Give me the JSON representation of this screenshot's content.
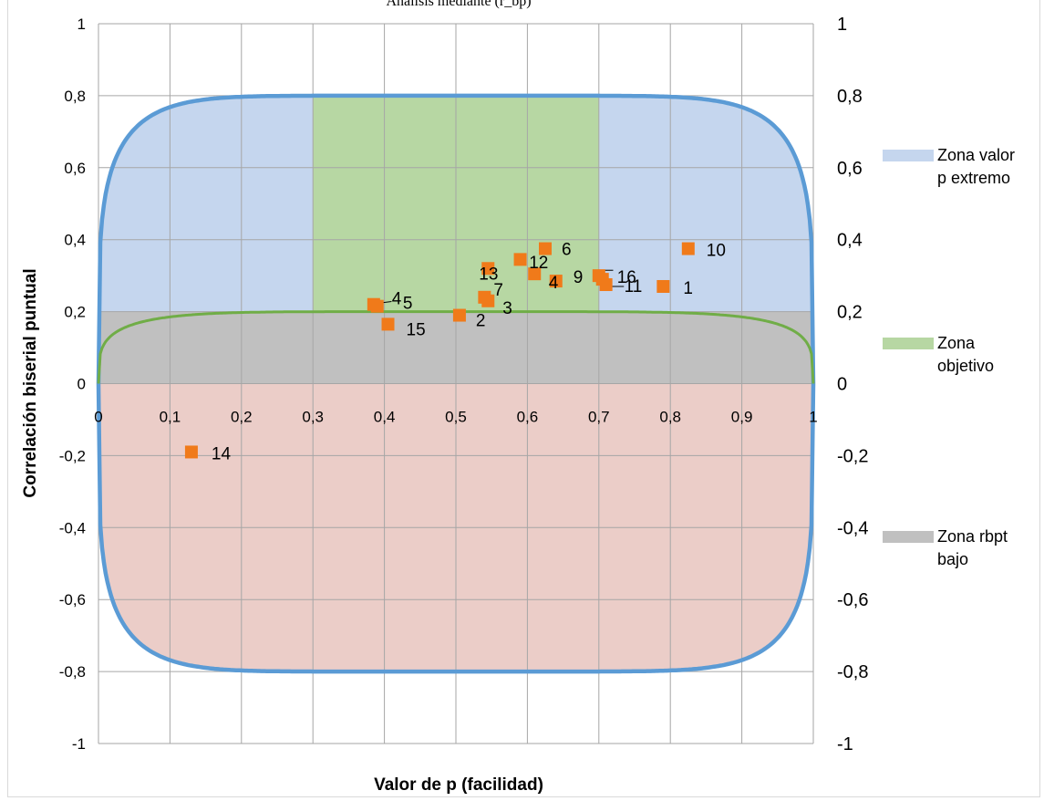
{
  "chart_data": {
    "type": "scatter",
    "title": "Análisis mediante (r_bp)",
    "xlabel": "Valor de p (facilidad)",
    "ylabel": "Correlación biserial puntual",
    "xlim": [
      0,
      1
    ],
    "ylim": [
      -1,
      1
    ],
    "x_ticks": [
      "0",
      "0,1",
      "0,2",
      "0,3",
      "0,4",
      "0,5",
      "0,6",
      "0,7",
      "0,8",
      "0,9",
      "1"
    ],
    "y_ticks": [
      "1",
      "0,8",
      "0,6",
      "0,4",
      "0,2",
      "0",
      "-0,2",
      "-0,4",
      "-0,6",
      "-0,8",
      "-1"
    ],
    "grid": true,
    "legend_position": "right",
    "legend": [
      {
        "label": "Zona valor p extremo",
        "color": "#c5d6ee"
      },
      {
        "label": "Zona objetivo",
        "color": "#b7d7a3"
      },
      {
        "label": "Zona rbpt bajo",
        "color": "#c0c0c0"
      }
    ],
    "zones": {
      "extreme_p_color": "#c5d6ee",
      "target_color": "#b7d7a3",
      "low_rbpt_color": "#c0c0c0",
      "negative_color": "#ebcdc8",
      "outer_curve_color": "#5b9bd5",
      "inner_curve_color": "#70ad47",
      "target_x_range": [
        0.3,
        0.7
      ],
      "low_rbpt_threshold": 0.2,
      "outer_curve_peak": 0.8,
      "inner_curve_peak": 0.2
    },
    "series": [
      {
        "color": "#f07a1a",
        "marker": "square",
        "points": [
          {
            "label": "1",
            "x": 0.79,
            "y": 0.27
          },
          {
            "label": "2",
            "x": 0.505,
            "y": 0.19
          },
          {
            "label": "3",
            "x": 0.545,
            "y": 0.23
          },
          {
            "label": "4",
            "x": 0.64,
            "y": 0.285
          },
          {
            "label": "4",
            "x": 0.39,
            "y": 0.215
          },
          {
            "label": "5",
            "x": 0.385,
            "y": 0.22
          },
          {
            "label": "6",
            "x": 0.625,
            "y": 0.375
          },
          {
            "label": "7",
            "x": 0.54,
            "y": 0.24
          },
          {
            "label": "9",
            "x": 0.7,
            "y": 0.3
          },
          {
            "label": "10",
            "x": 0.825,
            "y": 0.375
          },
          {
            "label": "11",
            "x": 0.71,
            "y": 0.275
          },
          {
            "label": "12",
            "x": 0.61,
            "y": 0.305
          },
          {
            "label": "13",
            "x": 0.545,
            "y": 0.32
          },
          {
            "label": "14",
            "x": 0.13,
            "y": -0.19
          },
          {
            "label": "15",
            "x": 0.405,
            "y": 0.165
          },
          {
            "label": "16",
            "x": 0.705,
            "y": 0.29
          },
          {
            "label": "",
            "x": 0.59,
            "y": 0.345
          }
        ]
      }
    ]
  }
}
